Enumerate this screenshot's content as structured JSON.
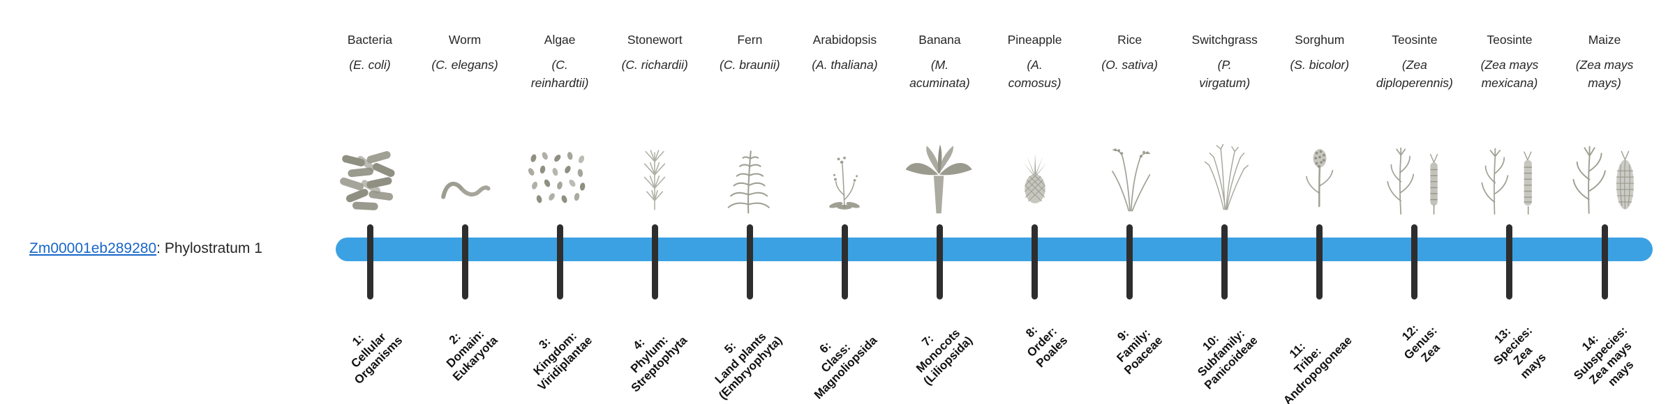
{
  "gene": {
    "id": "Zm00001eb289280",
    "suffix": ": Phylostratum 1"
  },
  "colors": {
    "bar": "#3ba1e3",
    "tick": "#2e2e2e",
    "link": "#1766c8",
    "text": "#262626",
    "illustration": "#8f8f82"
  },
  "columns": [
    {
      "common_name": "Bacteria",
      "sci_lines": [
        "(E. coli)"
      ],
      "icon": "bacteria",
      "stratum_lines": [
        "1:",
        "Cellular",
        "Organisms"
      ]
    },
    {
      "common_name": "Worm",
      "sci_lines": [
        "(C. elegans)"
      ],
      "icon": "worm",
      "stratum_lines": [
        "2:",
        "Domain:",
        "Eukaryota"
      ]
    },
    {
      "common_name": "Algae",
      "sci_lines": [
        "(C.",
        "reinhardtii)"
      ],
      "icon": "algae",
      "stratum_lines": [
        "3:",
        "Kingdom:",
        "Viridiplantae"
      ]
    },
    {
      "common_name": "Stonewort",
      "sci_lines": [
        "(C. richardii)"
      ],
      "icon": "stonewort",
      "stratum_lines": [
        "4:",
        "Phylum:",
        "Streptophyta"
      ]
    },
    {
      "common_name": "Fern",
      "sci_lines": [
        "(C. braunii)"
      ],
      "icon": "fern",
      "stratum_lines": [
        "5:",
        "Land plants",
        "(Embryophyta)"
      ]
    },
    {
      "common_name": "Arabidopsis",
      "sci_lines": [
        "(A. thaliana)"
      ],
      "icon": "arabidopsis",
      "stratum_lines": [
        "6:",
        "Class:",
        "Magnoliopsida"
      ]
    },
    {
      "common_name": "Banana",
      "sci_lines": [
        "(M.",
        "acuminata)"
      ],
      "icon": "banana",
      "stratum_lines": [
        "7:",
        "Monocots",
        "(Liliopsida)"
      ]
    },
    {
      "common_name": "Pineapple",
      "sci_lines": [
        "(A.",
        "comosus)"
      ],
      "icon": "pineapple",
      "stratum_lines": [
        "8:",
        "Order:",
        "Poales"
      ]
    },
    {
      "common_name": "Rice",
      "sci_lines": [
        "(O. sativa)"
      ],
      "icon": "rice",
      "stratum_lines": [
        "9:",
        "Family:",
        "Poaceae"
      ]
    },
    {
      "common_name": "Switchgrass",
      "sci_lines": [
        "(P.",
        "virgatum)"
      ],
      "icon": "switchgrass",
      "stratum_lines": [
        "10:",
        "Subfamily:",
        "Panicoideae"
      ]
    },
    {
      "common_name": "Sorghum",
      "sci_lines": [
        "(S. bicolor)"
      ],
      "icon": "sorghum",
      "stratum_lines": [
        "11:",
        "Tribe:",
        "Andropogoneae"
      ]
    },
    {
      "common_name": "Teosinte",
      "sci_lines": [
        "(Zea",
        "diploperennis)"
      ],
      "icon": "teosinte-diploperennis",
      "stratum_lines": [
        "12:",
        "Genus:",
        "Zea"
      ]
    },
    {
      "common_name": "Teosinte",
      "sci_lines": [
        "(Zea mays",
        "mexicana)"
      ],
      "icon": "teosinte-mexicana",
      "stratum_lines": [
        "13:",
        "Species:",
        "Zea",
        "mays"
      ]
    },
    {
      "common_name": "Maize",
      "sci_lines": [
        "(Zea mays",
        "mays)"
      ],
      "icon": "maize",
      "stratum_lines": [
        "14:",
        "Subspecies:",
        "Zea mays",
        "mays"
      ]
    }
  ]
}
